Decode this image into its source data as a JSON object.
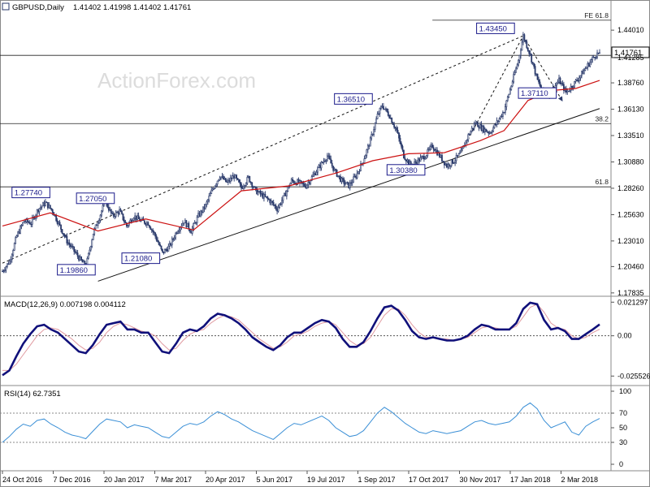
{
  "header": {
    "symbol": "GBPUSD,Daily",
    "ohlc": "1.41402 1.41998 1.41402 1.41761"
  },
  "watermark": "ActionForex.com",
  "colors": {
    "candles": "#2a3a6b",
    "ma": "#cc1111",
    "macd": "#10107a",
    "signal": "#e09aa0",
    "rsi": "#3a8fd6",
    "grid": "#888888",
    "label_box": "#1a1a8a"
  },
  "chart_data": [
    {
      "type": "candlestick",
      "title": "GBPUSD,Daily",
      "ylim": [
        1.175,
        1.458
      ],
      "y_ticks": [
        "1.44010",
        "1.41285",
        "1.38760",
        "1.36130",
        "1.33510",
        "1.30880",
        "1.28260",
        "1.25630",
        "1.23010",
        "1.20460",
        "1.17835"
      ],
      "x_labels": [
        "24 Oct 2016",
        "7 Dec 2016",
        "20 Jan 2017",
        "7 Mar 2017",
        "20 Apr 2017",
        "5 Jun 2017",
        "19 Jul 2017",
        "1 Sep 2017",
        "17 Oct 2017",
        "30 Nov 2017",
        "17 Jan 2018",
        "2 Mar 2018"
      ],
      "last_price": "1.41761",
      "price_path": [
        [
          0,
          1.2
        ],
        [
          6,
          1.21
        ],
        [
          12,
          1.235
        ],
        [
          18,
          1.25
        ],
        [
          24,
          1.248
        ],
        [
          30,
          1.262
        ],
        [
          36,
          1.268
        ],
        [
          42,
          1.26
        ],
        [
          48,
          1.245
        ],
        [
          54,
          1.23
        ],
        [
          60,
          1.22
        ],
        [
          66,
          1.21
        ],
        [
          70,
          1.205
        ],
        [
          76,
          1.238
        ],
        [
          80,
          1.25
        ],
        [
          86,
          1.27
        ],
        [
          92,
          1.255
        ],
        [
          98,
          1.26
        ],
        [
          104,
          1.245
        ],
        [
          110,
          1.255
        ],
        [
          116,
          1.25
        ],
        [
          122,
          1.248
        ],
        [
          128,
          1.235
        ],
        [
          134,
          1.218
        ],
        [
          140,
          1.225
        ],
        [
          146,
          1.24
        ],
        [
          152,
          1.25
        ],
        [
          158,
          1.24
        ],
        [
          164,
          1.255
        ],
        [
          170,
          1.265
        ],
        [
          176,
          1.282
        ],
        [
          182,
          1.295
        ],
        [
          188,
          1.288
        ],
        [
          194,
          1.295
        ],
        [
          200,
          1.283
        ],
        [
          206,
          1.293
        ],
        [
          212,
          1.28
        ],
        [
          218,
          1.275
        ],
        [
          224,
          1.27
        ],
        [
          230,
          1.262
        ],
        [
          236,
          1.275
        ],
        [
          242,
          1.29
        ],
        [
          248,
          1.288
        ],
        [
          254,
          1.285
        ],
        [
          260,
          1.295
        ],
        [
          266,
          1.305
        ],
        [
          272,
          1.315
        ],
        [
          278,
          1.3
        ],
        [
          284,
          1.29
        ],
        [
          290,
          1.285
        ],
        [
          296,
          1.295
        ],
        [
          302,
          1.31
        ],
        [
          308,
          1.33
        ],
        [
          314,
          1.355
        ],
        [
          318,
          1.3651
        ],
        [
          324,
          1.355
        ],
        [
          330,
          1.34
        ],
        [
          336,
          1.315
        ],
        [
          342,
          1.305
        ],
        [
          348,
          1.31
        ],
        [
          354,
          1.315
        ],
        [
          360,
          1.325
        ],
        [
          366,
          1.315
        ],
        [
          372,
          1.305
        ],
        [
          378,
          1.31
        ],
        [
          384,
          1.318
        ],
        [
          390,
          1.335
        ],
        [
          396,
          1.348
        ],
        [
          402,
          1.342
        ],
        [
          408,
          1.338
        ],
        [
          414,
          1.348
        ],
        [
          420,
          1.36
        ],
        [
          426,
          1.385
        ],
        [
          432,
          1.41
        ],
        [
          436,
          1.4345
        ],
        [
          442,
          1.415
        ],
        [
          448,
          1.39
        ],
        [
          454,
          1.375
        ],
        [
          460,
          1.38
        ],
        [
          466,
          1.39
        ],
        [
          472,
          1.378
        ],
        [
          478,
          1.386
        ],
        [
          484,
          1.395
        ],
        [
          490,
          1.405
        ],
        [
          496,
          1.415
        ],
        [
          500,
          1.4176
        ]
      ],
      "ma_path": [
        [
          0,
          1.245
        ],
        [
          40,
          1.258
        ],
        [
          80,
          1.24
        ],
        [
          120,
          1.252
        ],
        [
          160,
          1.241
        ],
        [
          200,
          1.28
        ],
        [
          240,
          1.285
        ],
        [
          280,
          1.298
        ],
        [
          310,
          1.31
        ],
        [
          340,
          1.317
        ],
        [
          370,
          1.318
        ],
        [
          400,
          1.33
        ],
        [
          420,
          1.34
        ],
        [
          440,
          1.37
        ],
        [
          460,
          1.38
        ],
        [
          480,
          1.382
        ],
        [
          500,
          1.39
        ]
      ],
      "horizontal_levels": [
        {
          "price": 1.45,
          "label": "FE 61.8",
          "x_from": 360
        },
        {
          "price": 1.415,
          "label": ""
        },
        {
          "price": 1.347,
          "label": "38.2"
        },
        {
          "price": 1.284,
          "label": "61.8"
        }
      ],
      "trendlines": [
        {
          "style": "solid",
          "from": [
            80,
            1.19
          ],
          "to": [
            500,
            1.362
          ]
        },
        {
          "style": "dashed",
          "from": [
            0,
            1.208
          ],
          "to": [
            436,
            1.4345
          ]
        },
        {
          "style": "dashed",
          "from": [
            384,
            1.318
          ],
          "to": [
            436,
            1.4345
          ]
        },
        {
          "style": "dashed",
          "from": [
            436,
            1.4345
          ],
          "to": [
            468,
            1.3711
          ]
        }
      ],
      "annotations": [
        {
          "text": "1.43450",
          "x": 397,
          "price": 1.4415
        },
        {
          "text": "1.41761",
          "x": 505,
          "price": 1.4176
        },
        {
          "text": "1.36510",
          "x": 278,
          "price": 1.3712
        },
        {
          "text": "1.37110",
          "x": 432,
          "price": 1.377
        },
        {
          "text": "1.30380",
          "x": 322,
          "price": 1.3005
        },
        {
          "text": "1.27740",
          "x": 8,
          "price": 1.278
        },
        {
          "text": "1.27050",
          "x": 62,
          "price": 1.2722
        },
        {
          "text": "1.21080",
          "x": 100,
          "price": 1.2125
        },
        {
          "text": "1.19860",
          "x": 46,
          "price": 1.201
        }
      ]
    },
    {
      "type": "line",
      "title": "MACD(12,26,9) 0.007198 0.004112",
      "ylim": [
        -0.03,
        0.0235
      ],
      "y_ticks": [
        "0.021297",
        "0.00",
        "-0.025526"
      ],
      "series": [
        {
          "role": "macd",
          "values": [
            -0.025,
            -0.022,
            -0.013,
            -0.005,
            0.001,
            0.006,
            0.007,
            0.004,
            0.002,
            -0.002,
            -0.006,
            -0.01,
            -0.011,
            -0.006,
            0.001,
            0.007,
            0.008,
            0.009,
            0.004,
            0.004,
            0.002,
            0.002,
            -0.004,
            -0.01,
            -0.011,
            -0.005,
            0.002,
            0.004,
            0.003,
            0.006,
            0.011,
            0.014,
            0.013,
            0.011,
            0.008,
            0.004,
            -0.001,
            -0.004,
            -0.007,
            -0.009,
            -0.006,
            -0.001,
            0.002,
            0.002,
            0.005,
            0.008,
            0.01,
            0.009,
            0.005,
            -0.002,
            -0.007,
            -0.007,
            -0.004,
            0.003,
            0.011,
            0.018,
            0.019,
            0.016,
            0.01,
            0.003,
            -0.001,
            -0.002,
            -0.001,
            -0.002,
            -0.003,
            -0.003,
            -0.002,
            0.0,
            0.004,
            0.007,
            0.006,
            0.004,
            0.004,
            0.004,
            0.008,
            0.017,
            0.021,
            0.02,
            0.01,
            0.004,
            0.005,
            0.003,
            -0.002,
            -0.002,
            0.001,
            0.004,
            0.0072
          ]
        },
        {
          "role": "signal",
          "values": [
            -0.022,
            -0.022,
            -0.018,
            -0.012,
            -0.006,
            0.0,
            0.004,
            0.005,
            0.004,
            0.001,
            -0.002,
            -0.006,
            -0.009,
            -0.008,
            -0.004,
            0.002,
            0.006,
            0.008,
            0.007,
            0.005,
            0.003,
            0.002,
            0.0,
            -0.005,
            -0.009,
            -0.008,
            -0.003,
            0.001,
            0.003,
            0.004,
            0.008,
            0.011,
            0.013,
            0.012,
            0.01,
            0.006,
            0.002,
            -0.002,
            -0.005,
            -0.008,
            -0.007,
            -0.004,
            0.0,
            0.001,
            0.003,
            0.006,
            0.008,
            0.009,
            0.007,
            0.002,
            -0.003,
            -0.006,
            -0.005,
            -0.001,
            0.006,
            0.013,
            0.017,
            0.017,
            0.013,
            0.007,
            0.002,
            -0.001,
            -0.001,
            -0.002,
            -0.002,
            -0.003,
            -0.002,
            -0.001,
            0.002,
            0.005,
            0.006,
            0.005,
            0.004,
            0.004,
            0.006,
            0.012,
            0.018,
            0.02,
            0.015,
            0.008,
            0.005,
            0.004,
            0.0,
            -0.002,
            -0.001,
            0.002,
            0.0041
          ]
        }
      ]
    },
    {
      "type": "line",
      "title": "RSI(14) 62.7351",
      "ylim": [
        0,
        100
      ],
      "y_ticks": [
        "100",
        "70",
        "50",
        "30",
        "0"
      ],
      "dashed_levels": [
        70,
        30
      ],
      "series": [
        {
          "role": "rsi",
          "values": [
            30,
            38,
            48,
            55,
            52,
            60,
            62,
            55,
            50,
            44,
            40,
            38,
            35,
            45,
            55,
            62,
            60,
            58,
            50,
            54,
            52,
            50,
            44,
            38,
            36,
            44,
            52,
            56,
            54,
            58,
            66,
            72,
            68,
            62,
            58,
            52,
            46,
            42,
            38,
            34,
            42,
            50,
            56,
            54,
            58,
            62,
            66,
            60,
            50,
            44,
            38,
            40,
            46,
            58,
            70,
            78,
            72,
            64,
            56,
            50,
            44,
            42,
            46,
            44,
            42,
            44,
            46,
            52,
            58,
            60,
            56,
            54,
            56,
            58,
            66,
            78,
            84,
            76,
            60,
            50,
            54,
            58,
            44,
            40,
            52,
            58,
            62.7
          ]
        }
      ]
    }
  ]
}
